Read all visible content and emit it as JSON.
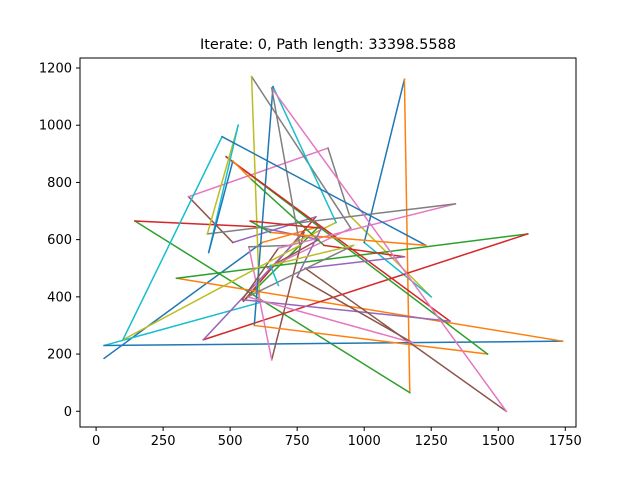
{
  "chart_data": {
    "type": "line",
    "title": "Iterate: 0,  Path length: 33398.5588",
    "xlabel": "",
    "ylabel": "",
    "xlim": [
      -60,
      1790
    ],
    "ylim": [
      -55,
      1235
    ],
    "x_ticks": [
      0,
      250,
      500,
      750,
      1000,
      1250,
      1500,
      1750
    ],
    "y_ticks": [
      0,
      200,
      400,
      600,
      800,
      1000,
      1200
    ],
    "grid": false,
    "legend": "none",
    "colors": [
      "#1f77b4",
      "#ff7f0e",
      "#2ca02c",
      "#d62728",
      "#9467bd",
      "#8c564b",
      "#e377c2",
      "#7f7f7f",
      "#bcbd22",
      "#17becf"
    ],
    "path": [
      [
        30,
        185
      ],
      [
        620,
        590
      ],
      [
        830,
        645
      ],
      [
        550,
        385
      ],
      [
        820,
        680
      ],
      [
        510,
        590
      ],
      [
        345,
        750
      ],
      [
        865,
        920
      ],
      [
        945,
        685
      ],
      [
        1250,
        400
      ],
      [
        1000,
        590
      ],
      [
        1150,
        1160
      ],
      [
        1170,
        65
      ],
      [
        145,
        665
      ],
      [
        600,
        645
      ],
      [
        830,
        600
      ],
      [
        640,
        500
      ],
      [
        950,
        640
      ],
      [
        580,
        1170
      ],
      [
        610,
        380
      ],
      [
        30,
        230
      ],
      [
        1740,
        245
      ],
      [
        300,
        465
      ],
      [
        1610,
        620
      ],
      [
        400,
        250
      ],
      [
        775,
        625
      ],
      [
        655,
        180
      ],
      [
        570,
        575
      ],
      [
        720,
        580
      ],
      [
        895,
        660
      ],
      [
        660,
        1135
      ],
      [
        590,
        300
      ],
      [
        1460,
        200
      ],
      [
        485,
        890
      ],
      [
        1320,
        315
      ],
      [
        545,
        390
      ],
      [
        680,
        570
      ],
      [
        1340,
        725
      ],
      [
        415,
        620
      ],
      [
        530,
        1000
      ],
      [
        420,
        555
      ],
      [
        510,
        875
      ],
      [
        580,
        810
      ],
      [
        850,
        580
      ],
      [
        1150,
        540
      ],
      [
        780,
        500
      ],
      [
        1530,
        0
      ],
      [
        655,
        1130
      ],
      [
        760,
        580
      ],
      [
        100,
        250
      ],
      [
        470,
        960
      ],
      [
        1230,
        580
      ],
      [
        650,
        625
      ],
      [
        575,
        665
      ],
      [
        840,
        640
      ],
      [
        750,
        470
      ],
      [
        1180,
        240
      ],
      [
        565,
        400
      ],
      [
        960,
        580
      ],
      [
        650,
        510
      ],
      [
        680,
        440
      ]
    ]
  }
}
